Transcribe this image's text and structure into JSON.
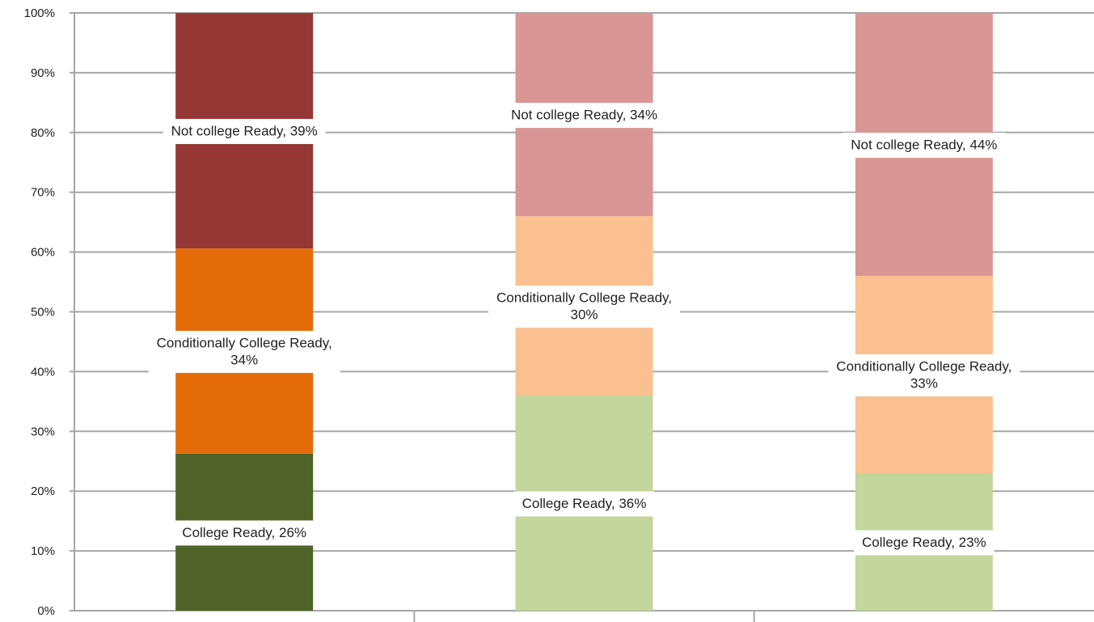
{
  "chart_data": {
    "type": "bar",
    "stacked": true,
    "percent": true,
    "categories": [
      "",
      "",
      ""
    ],
    "series": [
      {
        "name": "College Ready",
        "values": [
          26,
          36,
          23
        ],
        "colors": [
          "#4f6228",
          "#c3d69b",
          "#c3d69b"
        ],
        "labels": [
          "College Ready, 26%",
          "College Ready, 36%",
          "College Ready, 23%"
        ]
      },
      {
        "name": "Conditionally College Ready",
        "values": [
          34,
          30,
          33
        ],
        "colors": [
          "#e36c09",
          "#fac090",
          "#fac090"
        ],
        "labels": [
          "Conditionally College Ready,\n34%",
          "Conditionally College Ready,\n30%",
          "Conditionally College Ready,\n33%"
        ]
      },
      {
        "name": "Not college Ready",
        "values": [
          39,
          34,
          44
        ],
        "colors": [
          "#953735",
          "#d99694",
          "#d99694"
        ],
        "labels": [
          "Not college Ready, 39%",
          "Not college Ready, 34%",
          "Not college Ready, 44%"
        ]
      }
    ],
    "ylim": [
      0,
      100
    ],
    "yticks": [
      "0%",
      "10%",
      "20%",
      "30%",
      "40%",
      "50%",
      "60%",
      "70%",
      "80%",
      "90%",
      "100%"
    ],
    "grid": true,
    "title": "",
    "xlabel": "",
    "ylabel": ""
  }
}
